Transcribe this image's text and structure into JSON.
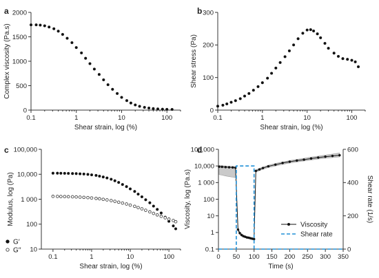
{
  "chart_data": [
    {
      "id": "a",
      "panel_letter": "a",
      "type": "scatter",
      "xlabel": "Shear strain, log (%)",
      "ylabel": "Complex viscosity (Pa.s)",
      "xscale": "log",
      "xlim": [
        0.1,
        200
      ],
      "ylim": [
        0,
        2000
      ],
      "xticks": [
        0.1,
        1,
        10,
        100
      ],
      "xtick_labels": [
        "0.1",
        "1",
        "10",
        "100"
      ],
      "yticks": [
        0,
        500,
        1000,
        1500,
        2000
      ],
      "ytick_labels": [
        "0",
        "500",
        "1000",
        "1500",
        "2000"
      ],
      "series": [
        {
          "color": "#111111",
          "marker": "filled-circle",
          "x": [
            0.1,
            0.13,
            0.16,
            0.2,
            0.25,
            0.32,
            0.4,
            0.5,
            0.63,
            0.8,
            1,
            1.3,
            1.6,
            2,
            2.5,
            3.2,
            4,
            5,
            6.3,
            8,
            10,
            13,
            16,
            20,
            25,
            32,
            40,
            50,
            63,
            80,
            100,
            130
          ],
          "y": [
            1745,
            1745,
            1740,
            1725,
            1700,
            1665,
            1615,
            1550,
            1470,
            1380,
            1280,
            1170,
            1060,
            950,
            840,
            730,
            620,
            520,
            425,
            340,
            260,
            195,
            145,
            105,
            78,
            57,
            42,
            31,
            24,
            19,
            16,
            14
          ]
        }
      ]
    },
    {
      "id": "b",
      "panel_letter": "b",
      "type": "scatter",
      "xlabel": "Shear strain, log (%)",
      "ylabel": "Shear stress (Pa)",
      "xscale": "log",
      "xlim": [
        0.1,
        200
      ],
      "ylim": [
        0,
        300
      ],
      "xticks": [
        0.1,
        1,
        10,
        100
      ],
      "xtick_labels": [
        "0.1",
        "1",
        "10",
        "100"
      ],
      "yticks": [
        0,
        100,
        200,
        300
      ],
      "ytick_labels": [
        "0",
        "100",
        "200",
        "300"
      ],
      "series": [
        {
          "color": "#111111",
          "marker": "filled-circle",
          "x": [
            0.1,
            0.13,
            0.16,
            0.2,
            0.25,
            0.32,
            0.4,
            0.5,
            0.63,
            0.8,
            1,
            1.3,
            1.6,
            2,
            2.5,
            3.2,
            4,
            5,
            6.3,
            8,
            10,
            12,
            14,
            17,
            20,
            25,
            30,
            40,
            50,
            63,
            80,
            100,
            120,
            140
          ],
          "y": [
            12,
            15,
            19,
            24,
            29,
            35,
            43,
            51,
            61,
            72,
            84,
            98,
            113,
            129,
            146,
            164,
            182,
            200,
            219,
            236,
            246,
            247,
            243,
            234,
            222,
            205,
            190,
            175,
            165,
            158,
            156,
            153,
            148,
            133
          ]
        }
      ]
    },
    {
      "id": "c",
      "panel_letter": "c",
      "type": "scatter",
      "xlabel": "Shear strain, log (%)",
      "ylabel": "Modulus, log (Pa)",
      "xscale": "log",
      "yscale": "log",
      "xlim": [
        0.05,
        200
      ],
      "ylim": [
        10,
        100000
      ],
      "xticks": [
        0.1,
        1,
        10,
        100
      ],
      "xtick_labels": [
        "0.1",
        "1",
        "10",
        "100"
      ],
      "yticks": [
        10,
        100,
        1000,
        10000,
        100000
      ],
      "ytick_labels": [
        "10",
        "100",
        "1 000",
        "10,000",
        "100,000"
      ],
      "legend_position": "bottom-left",
      "series": [
        {
          "name": "G′",
          "color": "#111111",
          "marker": "filled-circle",
          "x": [
            0.1,
            0.13,
            0.16,
            0.2,
            0.25,
            0.32,
            0.4,
            0.5,
            0.63,
            0.8,
            1,
            1.3,
            1.6,
            2,
            2.5,
            3.2,
            4,
            5,
            6.3,
            8,
            10,
            13,
            16,
            20,
            25,
            32,
            40,
            50,
            63,
            80,
            100,
            130,
            150
          ],
          "y": [
            11000,
            11000,
            10950,
            10900,
            10800,
            10700,
            10600,
            10400,
            10200,
            9900,
            9500,
            9000,
            8400,
            7800,
            7100,
            6300,
            5500,
            4700,
            3900,
            3200,
            2600,
            2050,
            1600,
            1250,
            950,
            720,
            530,
            390,
            280,
            190,
            130,
            85,
            65
          ]
        },
        {
          "name": "G′′",
          "color": "#444444",
          "marker": "open-circle",
          "x": [
            0.1,
            0.13,
            0.16,
            0.2,
            0.25,
            0.32,
            0.4,
            0.5,
            0.63,
            0.8,
            1,
            1.3,
            1.6,
            2,
            2.5,
            3.2,
            4,
            5,
            6.3,
            8,
            10,
            13,
            16,
            20,
            25,
            32,
            40,
            50,
            63,
            80,
            100,
            130,
            150
          ],
          "y": [
            1300,
            1290,
            1280,
            1270,
            1260,
            1250,
            1230,
            1210,
            1190,
            1160,
            1120,
            1080,
            1040,
            990,
            940,
            880,
            820,
            760,
            700,
            640,
            580,
            520,
            460,
            410,
            360,
            310,
            270,
            235,
            205,
            180,
            160,
            140,
            125
          ]
        }
      ]
    },
    {
      "id": "d",
      "panel_letter": "d",
      "type": "line",
      "xlabel": "Time (s)",
      "ylabel": "Viscosity, log (Pa.s)",
      "y2label": "Shear rate (1/s)",
      "xlim": [
        0,
        350
      ],
      "ylim": [
        0.1,
        100000
      ],
      "yscale": "log",
      "y2lim": [
        0,
        600
      ],
      "xticks": [
        0,
        50,
        100,
        150,
        200,
        250,
        300,
        350
      ],
      "xtick_labels": [
        "0",
        "50",
        "100",
        "150",
        "200",
        "250",
        "300",
        "350"
      ],
      "yticks": [
        0.1,
        1,
        10,
        100,
        1000,
        10000,
        100000
      ],
      "ytick_labels": [
        "0.1",
        "1",
        "10",
        "100",
        "1 000",
        "10,000",
        "100,000"
      ],
      "y2ticks": [
        0,
        200,
        400,
        600
      ],
      "y2tick_labels": [
        "0",
        "200",
        "400",
        "600"
      ],
      "legend_position": "bottom-right",
      "series": [
        {
          "name": "Viscosity",
          "axis": "left",
          "color": "#111111",
          "marker": "filled-circle",
          "x": [
            2,
            10,
            20,
            30,
            40,
            48,
            55,
            60,
            65,
            70,
            75,
            80,
            85,
            90,
            95,
            100,
            105,
            115,
            125,
            140,
            160,
            180,
            200,
            220,
            240,
            260,
            280,
            300,
            320,
            340
          ],
          "y": [
            9000,
            8800,
            8500,
            8300,
            8100,
            7800,
            1.5,
            0.9,
            0.7,
            0.6,
            0.55,
            0.5,
            0.48,
            0.45,
            0.42,
            0.4,
            5000,
            6200,
            7500,
            9500,
            12000,
            15000,
            18000,
            21000,
            24000,
            28000,
            32000,
            36000,
            40000,
            44000
          ],
          "band_lower": [
            3000,
            2800,
            2500,
            2300,
            2100,
            2000,
            1.2,
            0.75,
            0.6,
            0.52,
            0.48,
            0.44,
            0.42,
            0.39,
            0.37,
            0.35,
            4200,
            5200,
            6300,
            8000,
            10000,
            12500,
            15000,
            17500,
            20000,
            23000,
            26000,
            29000,
            32000,
            35000
          ],
          "band_upper": [
            11000,
            10500,
            10000,
            9700,
            9400,
            9100,
            1.8,
            1.1,
            0.85,
            0.7,
            0.63,
            0.57,
            0.55,
            0.51,
            0.48,
            0.46,
            5800,
            7200,
            8700,
            11000,
            14000,
            17500,
            21000,
            25000,
            29000,
            34000,
            39000,
            45000,
            52000,
            60000
          ]
        },
        {
          "name": "Shear rate",
          "axis": "right",
          "color": "#1f8fd6",
          "style": "dashed",
          "x": [
            0,
            50,
            50,
            100,
            100,
            350
          ],
          "y": [
            0,
            0,
            500,
            500,
            0,
            0
          ]
        }
      ]
    }
  ]
}
